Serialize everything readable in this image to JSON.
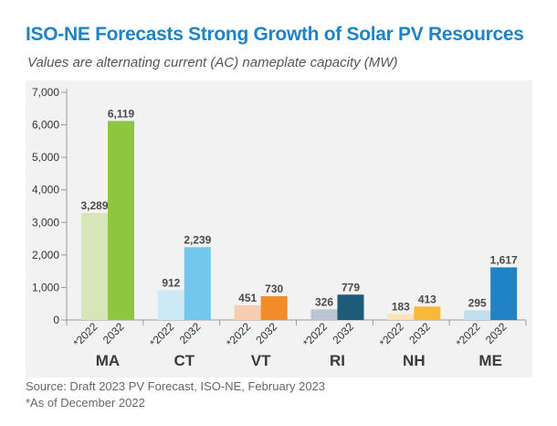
{
  "header": {
    "title": "ISO-NE Forecasts Strong Growth of Solar PV Resources",
    "subtitle": "Values are alternating current (AC) nameplate capacity (MW)"
  },
  "footer": {
    "source": "Source: Draft 2023 PV Forecast, ISO-NE, February 2023",
    "note": "*As of December 2022"
  },
  "chart_data": {
    "type": "bar",
    "title": "ISO-NE Forecasts Strong Growth of Solar PV Resources",
    "subtitle": "Values are alternating current (AC) nameplate capacity (MW)",
    "xlabel": "",
    "ylabel": "",
    "ylim": [
      0,
      7000
    ],
    "yticks": [
      0,
      1000,
      2000,
      3000,
      4000,
      5000,
      6000,
      7000
    ],
    "ytick_labels": [
      "0",
      "1,000",
      "2,000",
      "3,000",
      "4,000",
      "5,000",
      "6,000",
      "7,000"
    ],
    "grid": false,
    "legend": "none",
    "categories": [
      "MA",
      "CT",
      "VT",
      "RI",
      "NH",
      "ME"
    ],
    "series": [
      {
        "name": "*2022",
        "values": [
          3289,
          912,
          451,
          326,
          183,
          295
        ],
        "labels": [
          "3,289",
          "912",
          "451",
          "326",
          "183",
          "295"
        ],
        "colors": [
          "#d6e6b8",
          "#cde9f6",
          "#f8ceb2",
          "#b9c6d1",
          "#fbe2b8",
          "#c2ddf0"
        ]
      },
      {
        "name": "2032",
        "values": [
          6119,
          2239,
          730,
          779,
          413,
          1617
        ],
        "labels": [
          "6,119",
          "2,239",
          "730",
          "779",
          "413",
          "1,617"
        ],
        "colors": [
          "#8dc63f",
          "#72c7ec",
          "#f28c28",
          "#1e5b7a",
          "#f9b936",
          "#1f83c6"
        ]
      }
    ]
  }
}
